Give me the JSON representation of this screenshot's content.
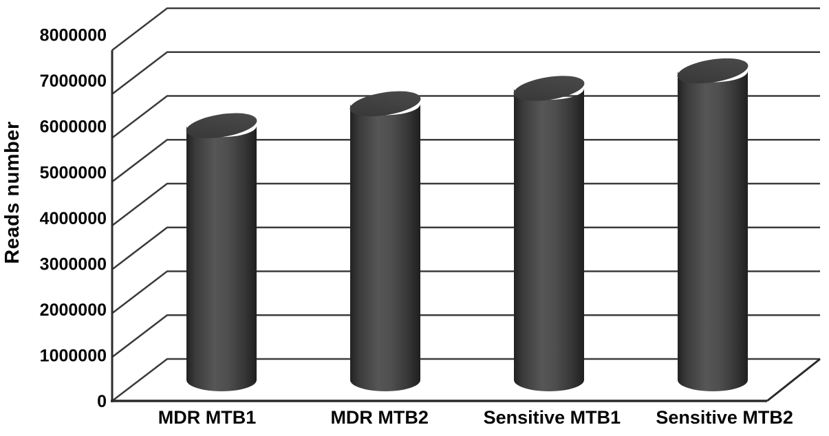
{
  "figure": {
    "background": "#ffffff"
  },
  "chart_data": {
    "type": "bar",
    "subtype": "3d-cylinder",
    "title": "",
    "xlabel": "",
    "ylabel": "Reads number",
    "categories": [
      "MDR MTB1",
      "MDR MTB2",
      "Sensitive MTB1",
      "Sensitive MTB2"
    ],
    "values": [
      5800000,
      6300000,
      6650000,
      7050000
    ],
    "ylim": [
      0,
      8000000
    ],
    "ytick_step": 1000000,
    "ytick_labels": [
      "0",
      "1000000",
      "2000000",
      "3000000",
      "4000000",
      "5000000",
      "6000000",
      "7000000",
      "8000000"
    ],
    "grid": true,
    "legend": "none",
    "colors": {
      "bar_body_mid": "#565656",
      "bar_body_edge": "#212121",
      "bar_top_light": "#4c4c4c",
      "bar_top_dark": "#363636",
      "gridline": "#3b3b3b",
      "axis": "#2b2b2b",
      "text": "#050505",
      "background": "#ffffff"
    }
  }
}
